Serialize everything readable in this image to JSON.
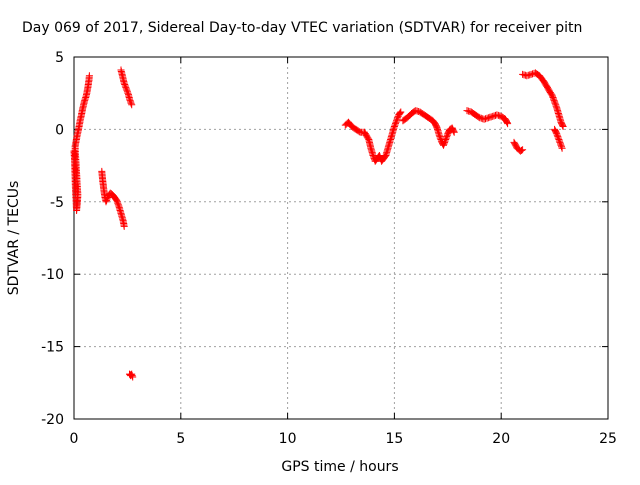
{
  "chart_data": {
    "type": "scatter",
    "title": "Day 069 of 2017, Sidereal Day-to-day VTEC variation (SDTVAR) for receiver pitn",
    "xlabel": "GPS time / hours",
    "ylabel": "SDTVAR / TECUs",
    "xlim": [
      0,
      25
    ],
    "ylim": [
      -20,
      5
    ],
    "xticks": [
      0,
      5,
      10,
      15,
      20,
      25
    ],
    "yticks": [
      5,
      0,
      -5,
      -10,
      -15,
      -20
    ],
    "xtick_labels": [
      "0",
      "5",
      "10",
      "15",
      "20",
      "25"
    ],
    "ytick_labels": [
      "5",
      "0",
      "-5",
      "-10",
      "-15",
      "-20"
    ],
    "grid": true,
    "marker": "+",
    "series": [
      {
        "name": "SDTVAR",
        "color": "#ff0000",
        "segments": [
          [
            [
              0.0,
              -1.5
            ],
            [
              0.03,
              -2.2
            ],
            [
              0.05,
              -3.2
            ],
            [
              0.07,
              -4.2
            ],
            [
              0.1,
              -5.0
            ],
            [
              0.12,
              -5.6
            ],
            [
              0.15,
              -5.2
            ],
            [
              0.18,
              -4.6
            ],
            [
              0.05,
              -1.2
            ],
            [
              0.1,
              -0.8
            ],
            [
              0.15,
              -0.4
            ],
            [
              0.2,
              -0.1
            ],
            [
              0.25,
              0.3
            ],
            [
              0.3,
              0.7
            ],
            [
              0.35,
              1.0
            ],
            [
              0.4,
              1.4
            ],
            [
              0.45,
              1.7
            ],
            [
              0.5,
              2.0
            ],
            [
              0.55,
              2.2
            ],
            [
              0.6,
              2.5
            ],
            [
              0.65,
              2.9
            ],
            [
              0.7,
              3.4
            ],
            [
              0.72,
              3.7
            ]
          ],
          [
            [
              1.3,
              -2.9
            ],
            [
              1.35,
              -3.6
            ],
            [
              1.4,
              -4.2
            ],
            [
              1.45,
              -4.7
            ],
            [
              1.5,
              -5.0
            ],
            [
              1.6,
              -4.6
            ],
            [
              1.7,
              -4.4
            ],
            [
              1.8,
              -4.5
            ],
            [
              1.9,
              -4.7
            ],
            [
              2.0,
              -4.9
            ],
            [
              2.1,
              -5.3
            ],
            [
              2.2,
              -5.8
            ],
            [
              2.3,
              -6.3
            ],
            [
              2.35,
              -6.7
            ]
          ],
          [
            [
              2.2,
              4.1
            ],
            [
              2.25,
              3.8
            ],
            [
              2.3,
              3.5
            ],
            [
              2.35,
              3.2
            ],
            [
              2.4,
              3.0
            ],
            [
              2.45,
              2.8
            ],
            [
              2.5,
              2.6
            ],
            [
              2.55,
              2.4
            ],
            [
              2.6,
              2.1
            ],
            [
              2.65,
              1.9
            ],
            [
              2.7,
              1.7
            ]
          ],
          [
            [
              2.6,
              -16.9
            ],
            [
              2.65,
              -17.0
            ],
            [
              2.7,
              -16.9
            ],
            [
              2.75,
              -17.1
            ]
          ],
          [
            [
              12.7,
              0.3
            ],
            [
              12.85,
              0.5
            ],
            [
              13.0,
              0.2
            ],
            [
              13.2,
              0.0
            ],
            [
              13.4,
              -0.2
            ],
            [
              13.6,
              -0.2
            ],
            [
              13.8,
              -0.7
            ],
            [
              13.9,
              -1.3
            ],
            [
              14.0,
              -1.8
            ],
            [
              14.1,
              -2.2
            ],
            [
              14.2,
              -2.0
            ],
            [
              14.3,
              -1.8
            ],
            [
              14.4,
              -2.2
            ],
            [
              14.5,
              -2.0
            ],
            [
              14.6,
              -1.8
            ],
            [
              14.7,
              -1.3
            ],
            [
              14.8,
              -0.8
            ],
            [
              14.9,
              -0.3
            ],
            [
              15.0,
              0.2
            ],
            [
              15.1,
              0.6
            ],
            [
              15.2,
              1.0
            ],
            [
              15.3,
              1.2
            ]
          ],
          [
            [
              15.4,
              0.6
            ],
            [
              15.6,
              0.8
            ],
            [
              15.8,
              1.1
            ],
            [
              16.0,
              1.3
            ],
            [
              16.2,
              1.2
            ],
            [
              16.4,
              1.0
            ],
            [
              16.6,
              0.8
            ],
            [
              16.8,
              0.6
            ],
            [
              16.9,
              0.4
            ],
            [
              17.0,
              0.1
            ],
            [
              17.1,
              -0.4
            ],
            [
              17.2,
              -0.8
            ],
            [
              17.3,
              -1.1
            ],
            [
              17.4,
              -0.7
            ],
            [
              17.5,
              -0.3
            ],
            [
              17.6,
              0.0
            ],
            [
              17.7,
              0.1
            ],
            [
              17.8,
              -0.2
            ]
          ],
          [
            [
              18.4,
              1.3
            ],
            [
              18.6,
              1.2
            ],
            [
              18.8,
              1.0
            ],
            [
              19.0,
              0.8
            ],
            [
              19.2,
              0.7
            ],
            [
              19.4,
              0.8
            ],
            [
              19.6,
              0.9
            ],
            [
              19.8,
              1.0
            ],
            [
              20.0,
              0.9
            ],
            [
              20.2,
              0.7
            ],
            [
              20.3,
              0.4
            ]
          ],
          [
            [
              20.6,
              -0.9
            ],
            [
              20.75,
              -1.3
            ],
            [
              20.9,
              -1.5
            ],
            [
              21.0,
              -1.4
            ]
          ],
          [
            [
              21.0,
              3.8
            ],
            [
              21.2,
              3.7
            ],
            [
              21.4,
              3.8
            ],
            [
              21.6,
              3.9
            ],
            [
              21.8,
              3.7
            ],
            [
              22.0,
              3.3
            ],
            [
              22.2,
              2.8
            ],
            [
              22.4,
              2.3
            ],
            [
              22.5,
              1.9
            ],
            [
              22.6,
              1.5
            ],
            [
              22.7,
              1.0
            ],
            [
              22.8,
              0.5
            ],
            [
              22.9,
              0.2
            ]
          ],
          [
            [
              22.5,
              0.0
            ],
            [
              22.6,
              -0.3
            ],
            [
              22.7,
              -0.7
            ],
            [
              22.8,
              -1.1
            ],
            [
              22.85,
              -1.3
            ]
          ]
        ]
      }
    ]
  }
}
